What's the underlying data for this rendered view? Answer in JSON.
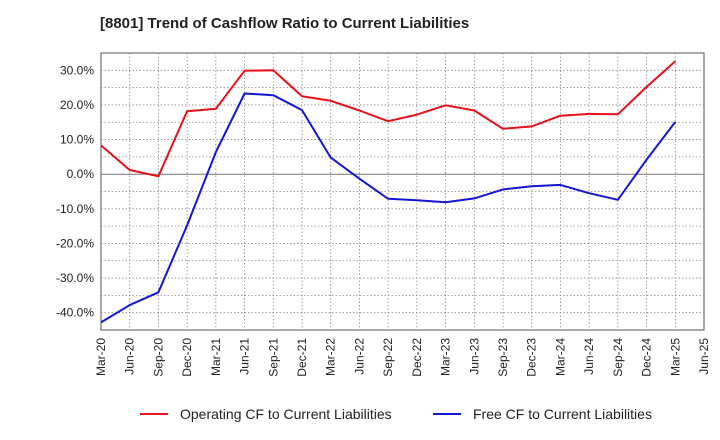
{
  "title": "[8801]  Trend of Cashflow Ratio to Current Liabilities",
  "chart_data": {
    "type": "line",
    "title": "[8801]  Trend of Cashflow Ratio to Current Liabilities",
    "xlabel": "",
    "ylabel": "",
    "categories": [
      "Mar-20",
      "Jun-20",
      "Sep-20",
      "Dec-20",
      "Mar-21",
      "Jun-21",
      "Sep-21",
      "Dec-21",
      "Mar-22",
      "Jun-22",
      "Sep-22",
      "Dec-22",
      "Mar-23",
      "Jun-23",
      "Sep-23",
      "Dec-23",
      "Mar-24",
      "Jun-24",
      "Sep-24",
      "Dec-24",
      "Mar-25",
      "Jun-25"
    ],
    "y_ticks": [
      "30.0%",
      "20.0%",
      "10.0%",
      "0.0%",
      "-10.0%",
      "-20.0%",
      "-30.0%",
      "-40.0%"
    ],
    "ylim": [
      -45,
      35
    ],
    "grid": true,
    "legend_position": "bottom",
    "series": [
      {
        "name": "Operating CF to Current Liabilities",
        "color": "#e8111a",
        "values": [
          8.3,
          1.2,
          -0.6,
          18.2,
          18.9,
          29.9,
          30.0,
          22.5,
          21.2,
          18.4,
          15.3,
          17.2,
          19.9,
          18.4,
          13.1,
          13.8,
          16.9,
          17.4,
          17.3,
          25.2,
          32.6,
          null
        ]
      },
      {
        "name": "Free CF to Current Liabilities",
        "color": "#1515d6",
        "values": [
          -42.8,
          -37.8,
          -34.1,
          -14.8,
          6.4,
          23.3,
          22.8,
          18.5,
          4.8,
          -1.3,
          -7.1,
          -7.5,
          -8.1,
          -7.0,
          -4.4,
          -3.5,
          -3.1,
          -5.5,
          -7.4,
          4.2,
          15.1,
          null
        ]
      }
    ]
  }
}
